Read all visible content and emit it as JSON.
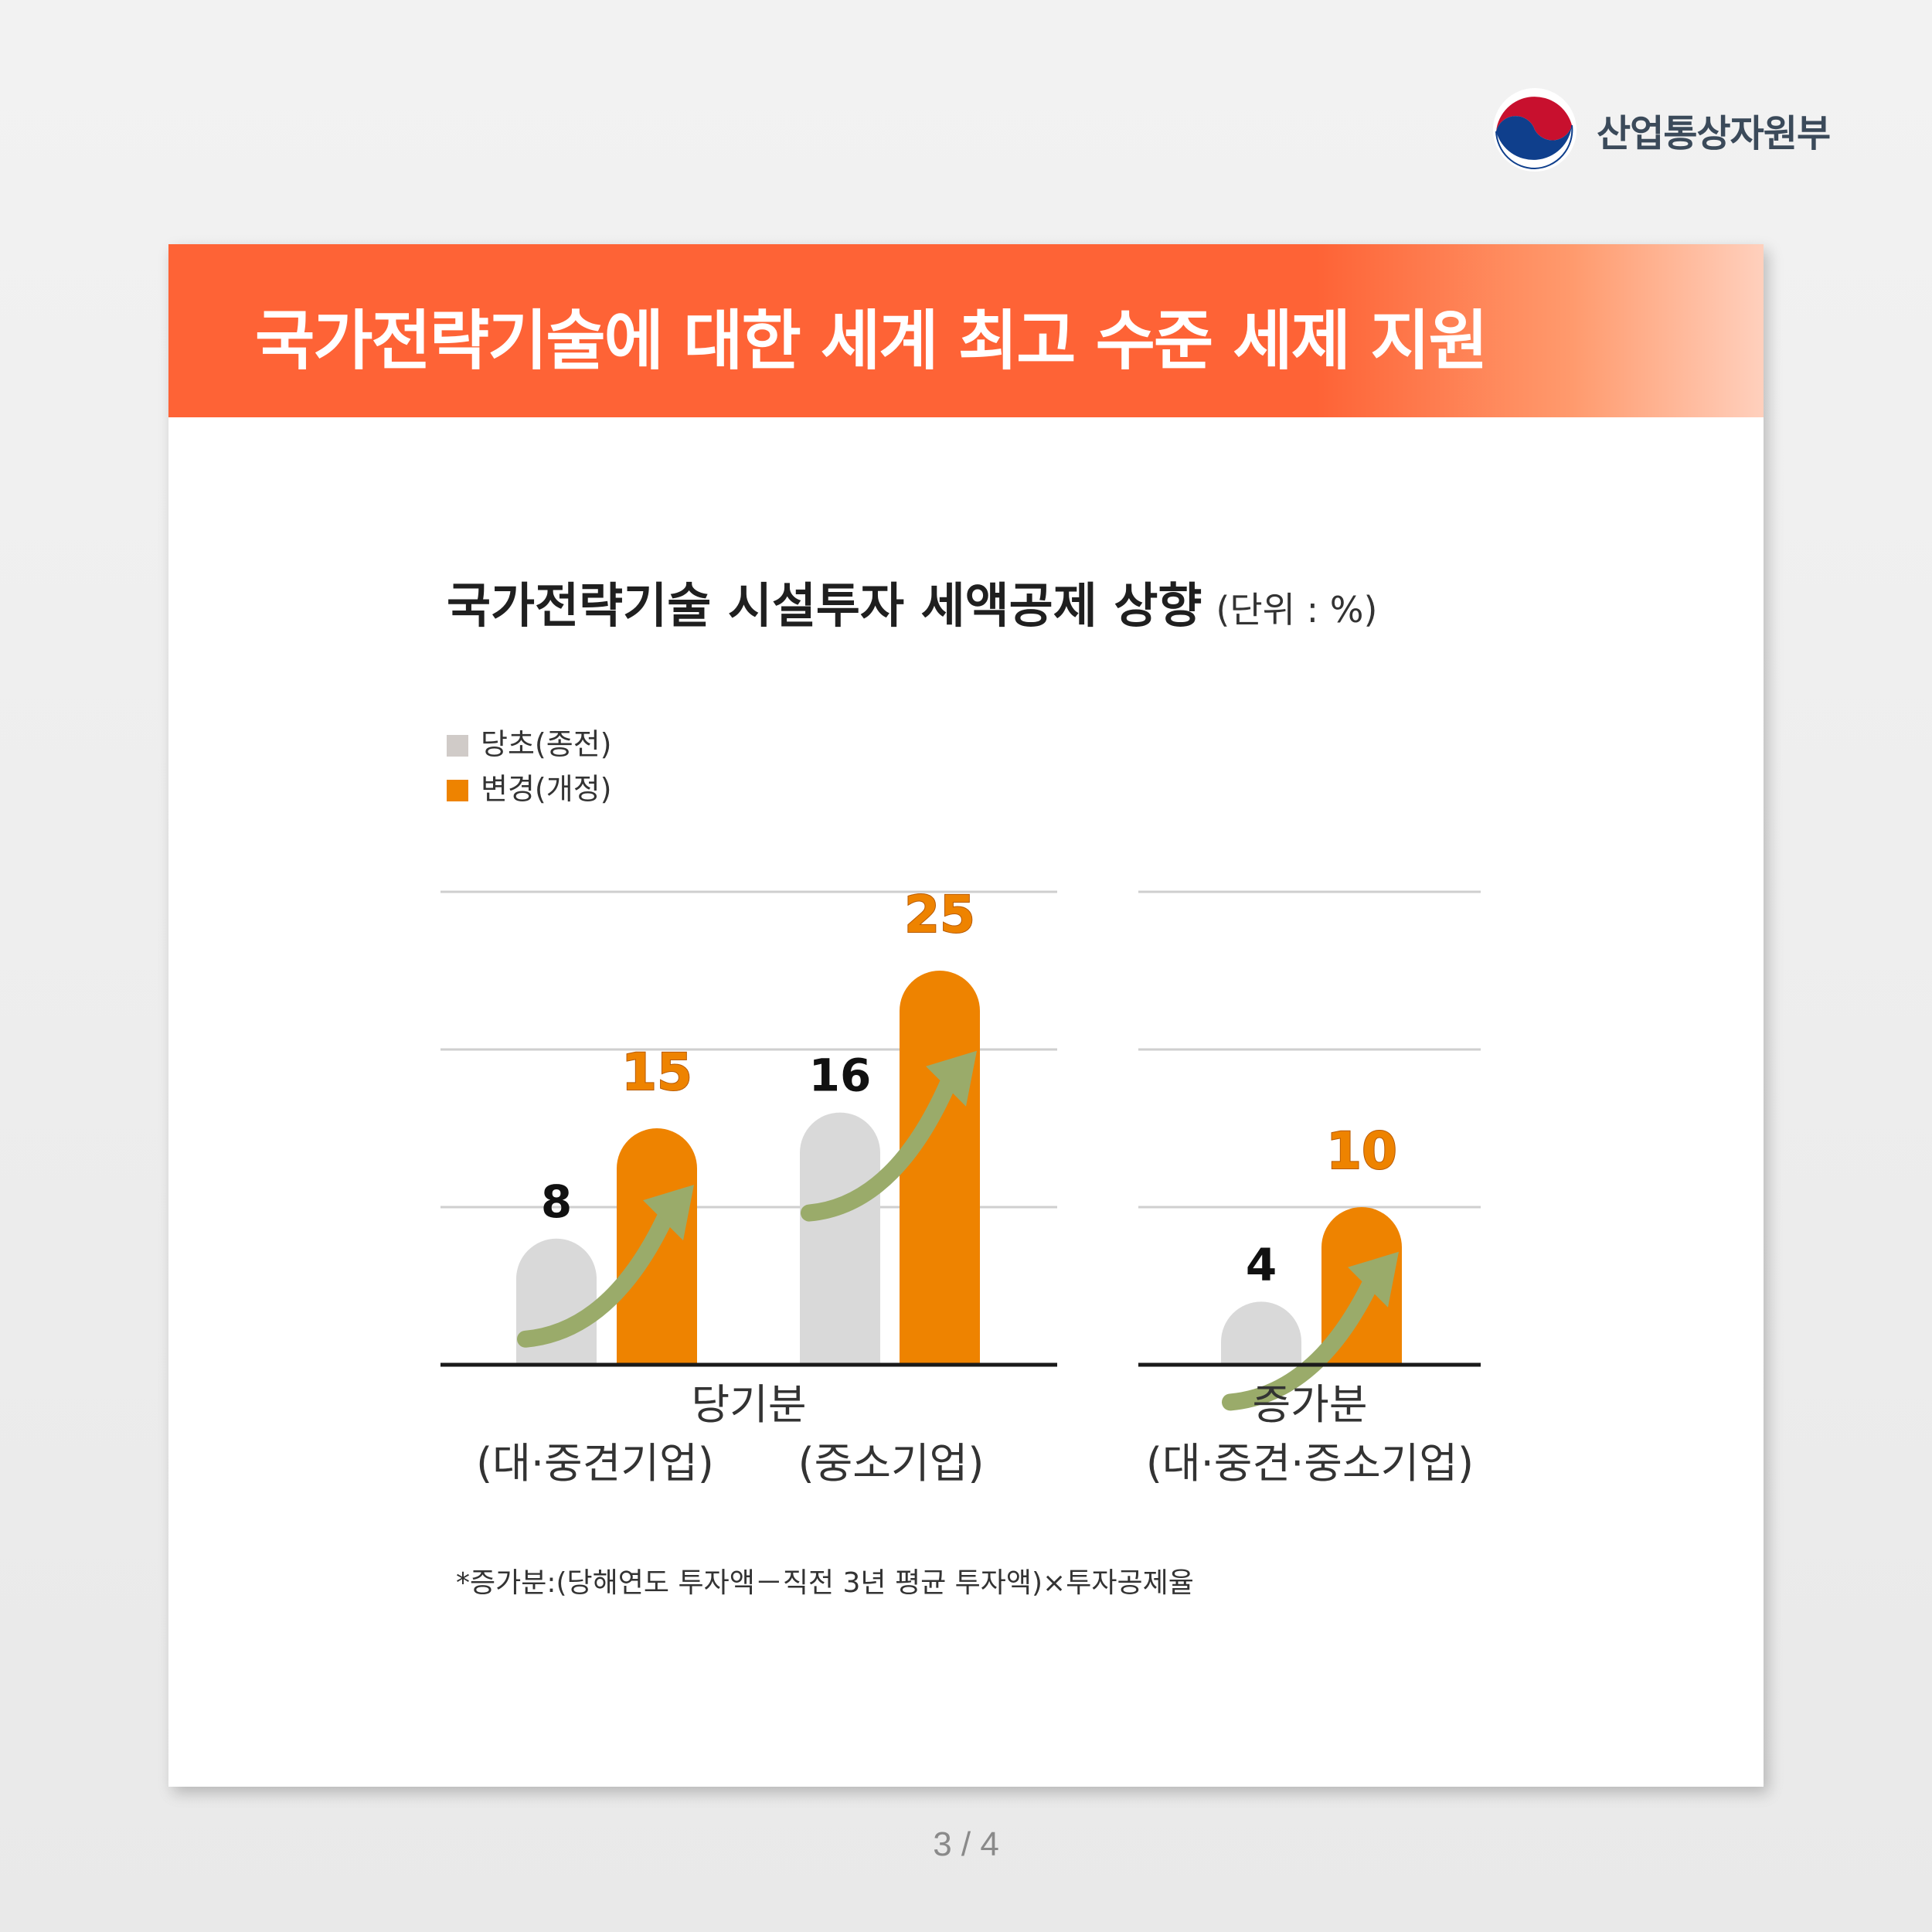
{
  "ministry": {
    "name": "산업통상자원부",
    "emblem_icon": "taegeuk-emblem-icon"
  },
  "banner": {
    "title": "국가전략기술에 대한 세계 최고 수준 세제 지원"
  },
  "colors": {
    "accent": "#fe6336",
    "series_new": "#ee8300",
    "series_old": "#d9d9d9",
    "arrow": "#9aab6a"
  },
  "pager": {
    "text": "3 / 4"
  },
  "chart_data": {
    "type": "bar",
    "title": "국가전략기술 시설투자 세액공제 상향",
    "unit_label": "(단위 : %)",
    "legend": {
      "placement": "top-left"
    },
    "series": [
      {
        "name": "당초(종전)",
        "color": "#d9d9d9",
        "values": [
          8,
          16,
          4
        ]
      },
      {
        "name": "변경(개정)",
        "color": "#ee8300",
        "values": [
          15,
          25,
          10
        ]
      }
    ],
    "groups": [
      {
        "title": "당기분",
        "categories": [
          "(대·중견기업)",
          "(중소기업)"
        ]
      },
      {
        "title": "증가분",
        "categories": [
          "(대·중견·중소기업)"
        ]
      }
    ],
    "ylim": [
      0,
      30
    ],
    "gridlines": [
      10,
      20,
      30
    ],
    "footnote": "*증가분:(당해연도 투자액－직전 3년 평균 투자액)×투자공제율"
  }
}
